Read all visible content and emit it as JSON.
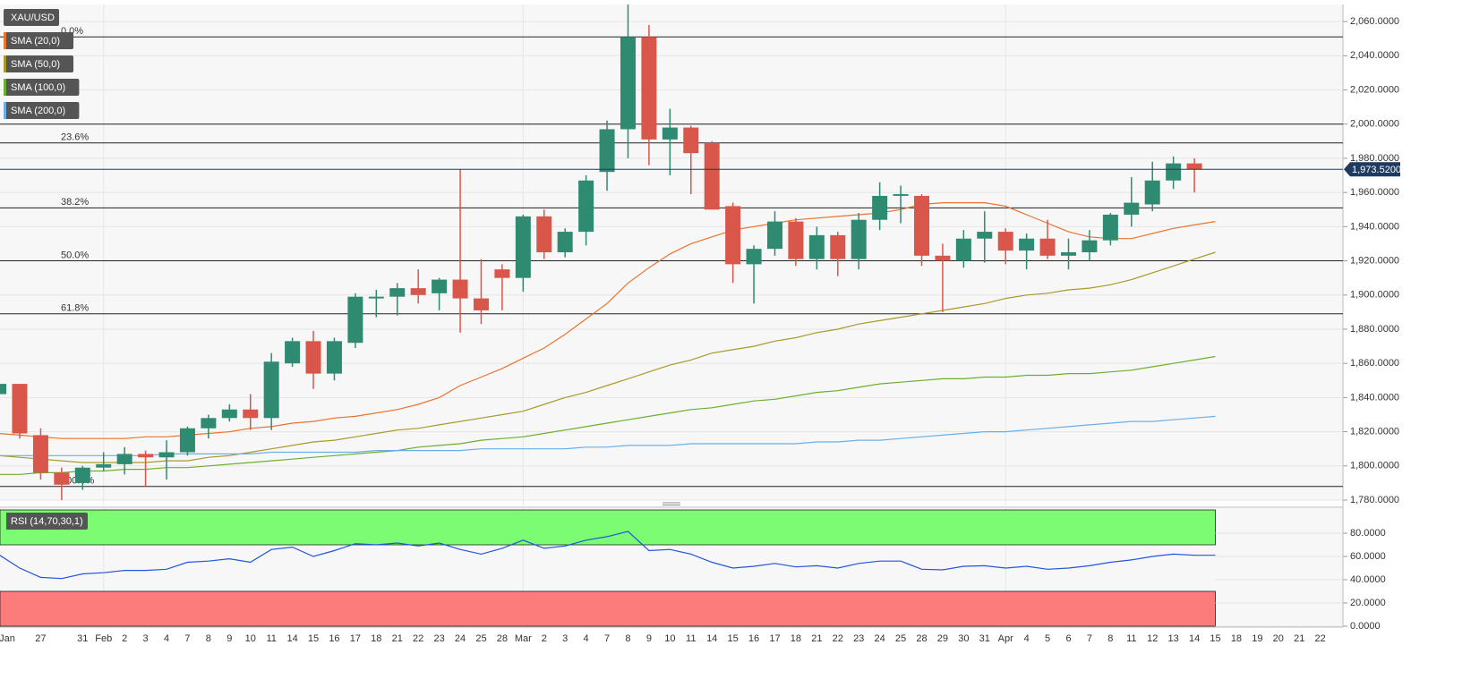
{
  "chart_data": [
    {
      "type": "candlestick",
      "symbol": "XAU/USD",
      "categories": [
        "Jan",
        null,
        "27",
        null,
        "31",
        "Feb",
        "2",
        "3",
        "4",
        "7",
        "8",
        "9",
        "10",
        "11",
        "14",
        "15",
        "16",
        "17",
        "18",
        "21",
        "22",
        "23",
        "24",
        "25",
        "28",
        "Mar",
        "2",
        "3",
        "4",
        "7",
        "8",
        "9",
        "10",
        "11",
        "14",
        "15",
        "16",
        "17",
        "18",
        "21",
        "22",
        "23",
        "24",
        "25",
        "28",
        "29",
        "30",
        "31",
        "Apr",
        "4",
        "5",
        "6",
        "7",
        "8",
        "11",
        "12",
        "13",
        "14",
        "15",
        "18",
        "19",
        "20",
        "21",
        "22"
      ],
      "open": [
        1842,
        1848,
        1818,
        1796,
        1790,
        1799,
        1801,
        1807,
        1805,
        1808,
        1822,
        1828,
        1833,
        1828,
        1860,
        1873,
        1854,
        1872,
        1898,
        1899,
        1904,
        1901,
        1909,
        1898,
        1915,
        1910,
        1946,
        1925,
        1937,
        1972,
        1997,
        2051,
        1991,
        1998,
        1989,
        1952,
        1918,
        1927,
        1943,
        1921,
        1935,
        1921,
        1944,
        1958,
        1958,
        1923,
        1920,
        1933,
        1937,
        1926,
        1933,
        1923,
        1925,
        1932,
        1947,
        1953,
        1967,
        1977,
        null,
        null,
        null,
        null,
        null,
        null
      ],
      "high": [
        1850,
        1848,
        1822,
        1799,
        1800,
        1808,
        1811,
        1809,
        1815,
        1823,
        1830,
        1836,
        1842,
        1866,
        1875,
        1879,
        1875,
        1901,
        1903,
        1907,
        1915,
        1910,
        1973.5,
        1921,
        1918,
        1947,
        1950,
        1939,
        1970,
        2002,
        2070,
        2058,
        2009,
        1999,
        1990,
        1954,
        1929,
        1949,
        1945,
        1940,
        1937,
        1948,
        1966,
        1964,
        1959,
        1930,
        1938,
        1949,
        1939,
        1936,
        1944,
        1933,
        1938,
        1948,
        1969,
        1978,
        1981,
        1980,
        null,
        null,
        null,
        null,
        null,
        null
      ],
      "low": [
        1841,
        1816,
        1792,
        1780,
        1786,
        1797,
        1795,
        1788,
        1792,
        1806,
        1816,
        1826,
        1821,
        1821,
        1858,
        1845,
        1850,
        1869,
        1887,
        1888,
        1895,
        1891,
        1878,
        1883,
        1891,
        1902,
        1921,
        1922,
        1929,
        1961,
        1980,
        1976,
        1970,
        1959,
        1950,
        1907,
        1895,
        1923,
        1917,
        1915,
        1911,
        1915,
        1938,
        1942,
        1917,
        1890,
        1916,
        1919,
        1918,
        1915,
        1921,
        1915,
        1920,
        1929,
        1940,
        1949,
        1962,
        1960,
        null,
        null,
        null,
        null,
        null,
        null
      ],
      "close": [
        1848,
        1819,
        1796,
        1789,
        1799,
        1801,
        1807,
        1805,
        1808,
        1822,
        1828,
        1833,
        1828,
        1861,
        1873,
        1854,
        1873,
        1899,
        1899,
        1904,
        1900,
        1909,
        1898,
        1891,
        1910,
        1946,
        1925,
        1937,
        1967,
        1997,
        2051,
        1991,
        1998,
        1983,
        1950,
        1918,
        1927,
        1943,
        1921,
        1935,
        1921,
        1944,
        1958,
        1959,
        1923,
        1920,
        1933,
        1937,
        1926,
        1933,
        1923,
        1925,
        1932,
        1947,
        1954,
        1967,
        1977,
        1973.52,
        null,
        null,
        null,
        null,
        null,
        null
      ],
      "up_color": "#2f8a72",
      "down_color": "#d9574a",
      "series": [
        {
          "name": "SMA (20,0)",
          "color": "#e8742f",
          "values": [
            1819,
            1818,
            1817,
            1816,
            1816,
            1816,
            1816,
            1817,
            1817,
            1818,
            1819,
            1820,
            1822,
            1823,
            1825,
            1826,
            1828,
            1829,
            1831,
            1833,
            1836,
            1840,
            1847,
            1852,
            1857,
            1863,
            1869,
            1877,
            1886,
            1895,
            1907,
            1916,
            1924,
            1930,
            1934,
            1938,
            1940,
            1942,
            1944,
            1945,
            1946,
            1947,
            1948,
            1950,
            1953,
            1954,
            1954,
            1954,
            1952,
            1947,
            1942,
            1937,
            1934,
            1933,
            1933,
            1936,
            1939,
            1941,
            1943,
            null,
            null,
            null,
            null,
            null
          ]
        },
        {
          "name": "SMA (50,0)",
          "color": "#a89a2a",
          "values": [
            1806,
            1805,
            1804,
            1803,
            1802,
            1802,
            1802,
            1802,
            1803,
            1803,
            1805,
            1806,
            1808,
            1810,
            1812,
            1814,
            1815,
            1817,
            1819,
            1821,
            1822,
            1824,
            1826,
            1828,
            1830,
            1832,
            1836,
            1840,
            1843,
            1847,
            1851,
            1855,
            1859,
            1862,
            1866,
            1868,
            1870,
            1873,
            1875,
            1878,
            1880,
            1883,
            1885,
            1887,
            1889,
            1891,
            1893,
            1895,
            1898,
            1900,
            1901,
            1903,
            1904,
            1906,
            1909,
            1913,
            1917,
            1921,
            1925,
            null,
            null,
            null,
            null,
            null
          ]
        },
        {
          "name": "SMA (100,0)",
          "color": "#6ab02e",
          "values": [
            1795,
            1795,
            1796,
            1796,
            1797,
            1797,
            1798,
            1798,
            1799,
            1799,
            1800,
            1801,
            1802,
            1803,
            1804,
            1805,
            1806,
            1807,
            1808,
            1809,
            1811,
            1812,
            1813,
            1815,
            1816,
            1817,
            1819,
            1821,
            1823,
            1825,
            1827,
            1829,
            1831,
            1833,
            1834,
            1836,
            1838,
            1839,
            1841,
            1843,
            1844,
            1846,
            1848,
            1849,
            1850,
            1851,
            1851,
            1852,
            1852,
            1853,
            1853,
            1854,
            1854,
            1855,
            1856,
            1858,
            1860,
            1862,
            1864,
            null,
            null,
            null,
            null,
            null
          ]
        },
        {
          "name": "SMA (200,0)",
          "color": "#6ab0e6",
          "values": [
            1806,
            1806,
            1806,
            1806,
            1806,
            1806,
            1806,
            1806,
            1807,
            1807,
            1807,
            1807,
            1807,
            1808,
            1808,
            1808,
            1808,
            1808,
            1809,
            1809,
            1809,
            1809,
            1809,
            1810,
            1810,
            1810,
            1810,
            1810,
            1811,
            1811,
            1812,
            1812,
            1812,
            1813,
            1813,
            1813,
            1813,
            1813,
            1813,
            1814,
            1814,
            1815,
            1815,
            1816,
            1817,
            1818,
            1819,
            1820,
            1820,
            1821,
            1822,
            1823,
            1824,
            1825,
            1826,
            1826,
            1827,
            1828,
            1829,
            null,
            null,
            null,
            null,
            null
          ]
        }
      ],
      "ylim": [
        1780,
        2070
      ],
      "yticks": [
        {
          "value": 1780,
          "label": "1,780.0000"
        },
        {
          "value": 1800,
          "label": "1,800.0000"
        },
        {
          "value": 1820,
          "label": "1,820.0000"
        },
        {
          "value": 1840,
          "label": "1,840.0000"
        },
        {
          "value": 1860,
          "label": "1,860.0000"
        },
        {
          "value": 1880,
          "label": "1,880.0000"
        },
        {
          "value": 1900,
          "label": "1,900.0000"
        },
        {
          "value": 1920,
          "label": "1,920.0000"
        },
        {
          "value": 1940,
          "label": "1,940.0000"
        },
        {
          "value": 1960,
          "label": "1,960.0000"
        },
        {
          "value": 1980,
          "label": "1,980.0000"
        },
        {
          "value": 2000,
          "label": "2,000.0000"
        },
        {
          "value": 2020,
          "label": "2,020.0000"
        },
        {
          "value": 2040,
          "label": "2,040.0000"
        },
        {
          "value": 2060,
          "label": "2,060.0000"
        }
      ],
      "levels": [
        {
          "value": 2051,
          "label": "0.0%"
        },
        {
          "value": 1989,
          "label": "23.6%"
        },
        {
          "value": 1951,
          "label": "38.2%"
        },
        {
          "value": 1920,
          "label": "50.0%"
        },
        {
          "value": 1889,
          "label": "61.8%"
        },
        {
          "value": 1788,
          "label": "100.0%"
        }
      ],
      "hlines": [
        2000
      ],
      "last_price": {
        "value": 1973.52,
        "label": "1,973.5200",
        "color": "#1f3a5f"
      },
      "grid": true
    },
    {
      "type": "line",
      "title": "RSI (14,70,30,1)",
      "color": "#2255dd",
      "values": [
        61.5,
        50,
        42,
        41,
        45,
        46,
        48,
        48,
        49,
        55,
        56,
        58,
        55,
        66,
        68,
        60,
        65,
        71,
        70,
        71.5,
        69,
        71.5,
        66,
        62,
        67,
        74,
        67,
        69,
        74,
        77,
        81.5,
        65,
        66,
        62,
        55,
        50,
        51.5,
        54,
        51,
        52,
        50,
        54,
        56,
        56,
        49,
        48.5,
        51.5,
        52,
        50,
        51.5,
        49,
        50,
        52,
        55,
        57,
        60,
        62,
        61,
        61,
        null,
        null,
        null,
        null,
        null
      ],
      "ylim": [
        0,
        100
      ],
      "yticks": [
        {
          "value": 0,
          "label": "0.0000"
        },
        {
          "value": 20,
          "label": "20.0000"
        },
        {
          "value": 40,
          "label": "40.0000"
        },
        {
          "value": 60,
          "label": "60.0000"
        },
        {
          "value": 80,
          "label": "80.0000"
        }
      ],
      "bands": [
        {
          "from": 70,
          "to": 100,
          "color": "#7cfc72"
        },
        {
          "from": 0,
          "to": 30,
          "color": "#fc7b7b"
        }
      ]
    }
  ]
}
